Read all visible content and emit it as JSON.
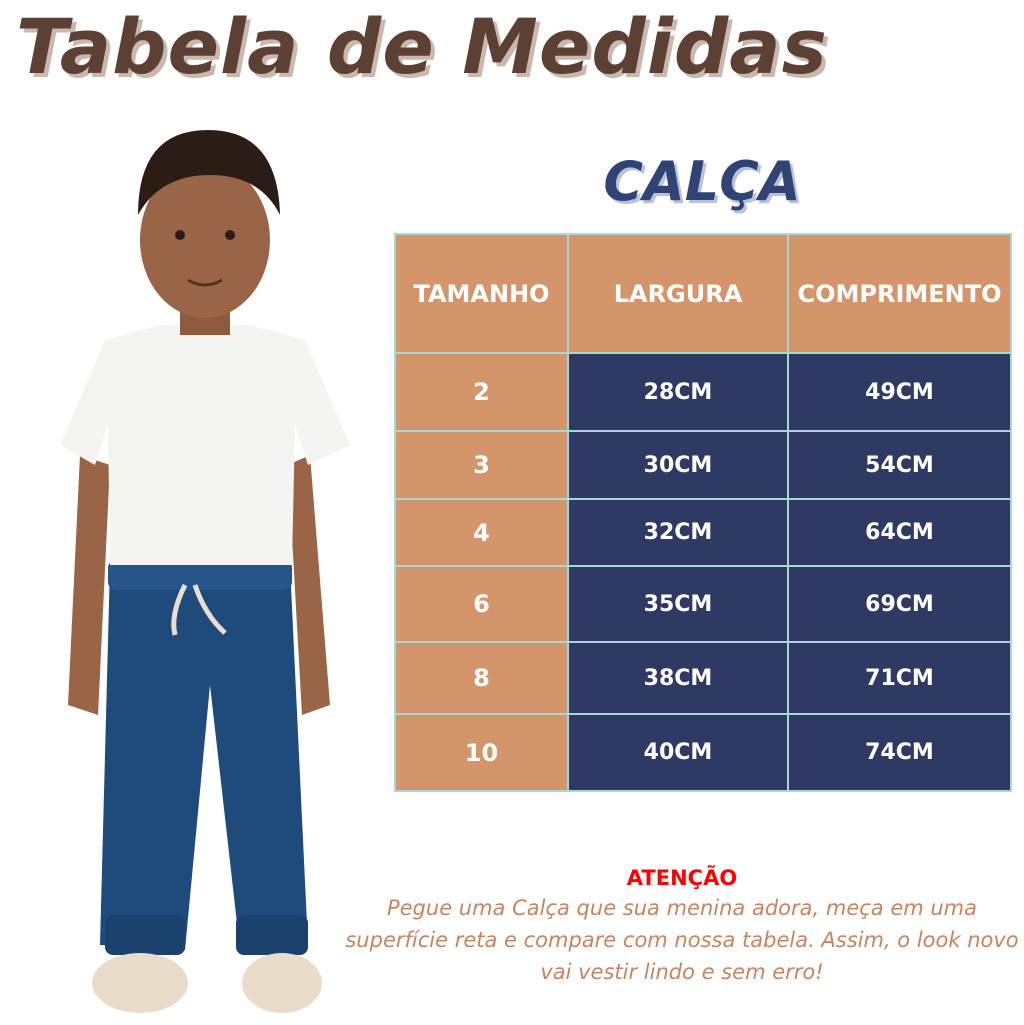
{
  "title": "Tabela de Medidas",
  "subtitle": "CALÇA",
  "table": {
    "headers": [
      "TAMANHO",
      "LARGURA",
      "COMPRIMENTO"
    ],
    "rows": [
      [
        "2",
        "28CM",
        "49CM"
      ],
      [
        "3",
        "30CM",
        "54CM"
      ],
      [
        "4",
        "32CM",
        "64CM"
      ],
      [
        "6",
        "35CM",
        "69CM"
      ],
      [
        "8",
        "38CM",
        "71CM"
      ],
      [
        "10",
        "40CM",
        "74CM"
      ]
    ]
  },
  "note": {
    "heading": "ATENÇÃO",
    "body": "Pegue uma Calça que sua menina adora, meça em uma superfície reta e compare com nossa tabela. Assim, o look novo vai vestir lindo e sem erro!"
  },
  "colors": {
    "title": "#5c4033",
    "subtitle": "#2f4475",
    "header_cell": "#d4956a",
    "value_cell": "#2e3a64",
    "border": "#a6d9d2",
    "warning": "#ff0000",
    "note_text": "#c8845c"
  }
}
